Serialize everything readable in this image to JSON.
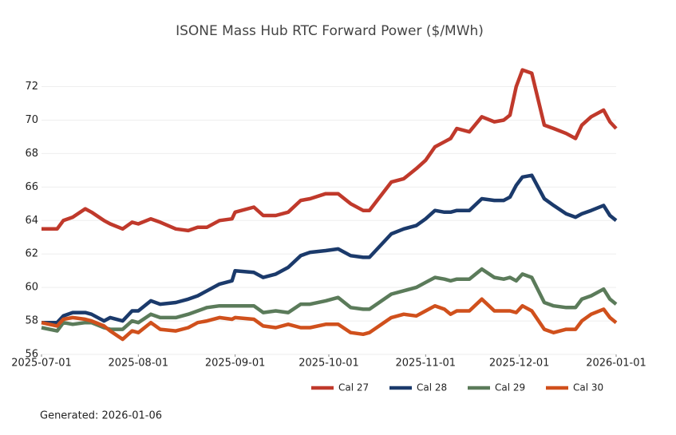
{
  "chart_data": {
    "type": "line",
    "title": "ISONE Mass Hub RTC Forward Power ($/MWh)",
    "footer": "Generated: 2026-01-06",
    "x": [
      "2025-07-01",
      "2025-07-06",
      "2025-07-08",
      "2025-07-11",
      "2025-07-15",
      "2025-07-17",
      "2025-07-21",
      "2025-07-23",
      "2025-07-27",
      "2025-07-30",
      "2025-08-01",
      "2025-08-05",
      "2025-08-08",
      "2025-08-13",
      "2025-08-17",
      "2025-08-20",
      "2025-08-23",
      "2025-08-27",
      "2025-08-31",
      "2025-09-01",
      "2025-09-07",
      "2025-09-10",
      "2025-09-14",
      "2025-09-18",
      "2025-09-22",
      "2025-09-25",
      "2025-09-30",
      "2025-10-04",
      "2025-10-08",
      "2025-10-12",
      "2025-10-14",
      "2025-10-21",
      "2025-10-25",
      "2025-10-29",
      "2025-11-01",
      "2025-11-04",
      "2025-11-07",
      "2025-11-09",
      "2025-11-11",
      "2025-11-15",
      "2025-11-19",
      "2025-11-23",
      "2025-11-26",
      "2025-11-28",
      "2025-11-30",
      "2025-12-02",
      "2025-12-05",
      "2025-12-09",
      "2025-12-12",
      "2025-12-16",
      "2025-12-19",
      "2025-12-21",
      "2025-12-24",
      "2025-12-28",
      "2025-12-30",
      "2026-01-01"
    ],
    "series": [
      {
        "name": "Cal 27",
        "color": "#c0392b",
        "values": [
          63.5,
          63.5,
          64.0,
          64.2,
          64.7,
          64.5,
          64.0,
          63.8,
          63.5,
          63.9,
          63.8,
          64.1,
          63.9,
          63.5,
          63.4,
          63.6,
          63.6,
          64.0,
          64.1,
          64.5,
          64.8,
          64.3,
          64.3,
          64.5,
          65.2,
          65.3,
          65.6,
          65.6,
          65.0,
          64.6,
          64.6,
          66.3,
          66.5,
          67.1,
          67.6,
          68.4,
          68.7,
          68.9,
          69.5,
          69.3,
          70.2,
          69.9,
          70.0,
          70.3,
          72.0,
          73.0,
          72.8,
          69.7,
          69.5,
          69.2,
          68.9,
          69.7,
          70.2,
          70.6,
          69.9,
          69.5
        ]
      },
      {
        "name": "Cal 28",
        "color": "#1b3a6b",
        "values": [
          57.9,
          57.9,
          58.3,
          58.5,
          58.5,
          58.4,
          58.0,
          58.2,
          58.0,
          58.6,
          58.6,
          59.2,
          59.0,
          59.1,
          59.3,
          59.5,
          59.8,
          60.2,
          60.4,
          61.0,
          60.9,
          60.6,
          60.8,
          61.2,
          61.9,
          62.1,
          62.2,
          62.3,
          61.9,
          61.8,
          61.8,
          63.2,
          63.5,
          63.7,
          64.1,
          64.6,
          64.5,
          64.5,
          64.6,
          64.6,
          65.3,
          65.2,
          65.2,
          65.4,
          66.1,
          66.6,
          66.7,
          65.3,
          64.9,
          64.4,
          64.2,
          64.4,
          64.6,
          64.9,
          64.3,
          64.0
        ]
      },
      {
        "name": "Cal 29",
        "color": "#5b7b5a",
        "values": [
          57.6,
          57.4,
          57.9,
          57.8,
          57.9,
          57.9,
          57.6,
          57.5,
          57.5,
          58.0,
          57.9,
          58.4,
          58.2,
          58.2,
          58.4,
          58.6,
          58.8,
          58.9,
          58.9,
          58.9,
          58.9,
          58.5,
          58.6,
          58.5,
          59.0,
          59.0,
          59.2,
          59.4,
          58.8,
          58.7,
          58.7,
          59.6,
          59.8,
          60.0,
          60.3,
          60.6,
          60.5,
          60.4,
          60.5,
          60.5,
          61.1,
          60.6,
          60.5,
          60.6,
          60.4,
          60.8,
          60.6,
          59.1,
          58.9,
          58.8,
          58.8,
          59.3,
          59.5,
          59.9,
          59.3,
          59.0
        ]
      },
      {
        "name": "Cal 30",
        "color": "#d0501c",
        "values": [
          57.9,
          57.7,
          58.1,
          58.2,
          58.1,
          58.0,
          57.7,
          57.4,
          56.9,
          57.4,
          57.3,
          57.9,
          57.5,
          57.4,
          57.6,
          57.9,
          58.0,
          58.2,
          58.1,
          58.2,
          58.1,
          57.7,
          57.6,
          57.8,
          57.6,
          57.6,
          57.8,
          57.8,
          57.3,
          57.2,
          57.3,
          58.2,
          58.4,
          58.3,
          58.6,
          58.9,
          58.7,
          58.4,
          58.6,
          58.6,
          59.3,
          58.6,
          58.6,
          58.6,
          58.5,
          58.9,
          58.6,
          57.5,
          57.3,
          57.5,
          57.5,
          58.0,
          58.4,
          58.7,
          58.2,
          57.9
        ]
      }
    ],
    "xlim": [
      "2025-07-01",
      "2026-01-01"
    ],
    "xticks": [
      "2025-07-01",
      "2025-08-01",
      "2025-09-01",
      "2025-10-01",
      "2025-11-01",
      "2025-12-01",
      "2026-01-01"
    ],
    "ylim": [
      56,
      73.6
    ],
    "yticks": [
      56,
      58,
      60,
      62,
      64,
      66,
      68,
      70,
      72
    ],
    "grid": true,
    "legend": "bottom-right"
  }
}
